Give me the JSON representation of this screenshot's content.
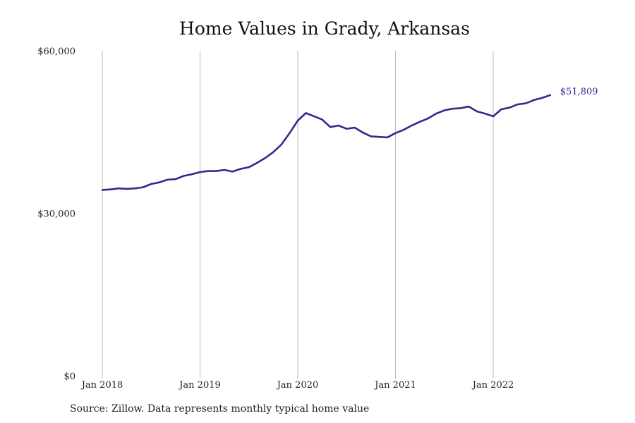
{
  "chart_data": {
    "type": "line",
    "title": "Home Values in Grady, Arkansas",
    "source": "Source: Zillow. Data represents monthly typical home value",
    "xlabel": "",
    "ylabel": "",
    "ylim": [
      0,
      60000
    ],
    "yticks": [
      {
        "value": 0,
        "label": "$0"
      },
      {
        "value": 30000,
        "label": "$30,000"
      },
      {
        "value": 60000,
        "label": "$60,000"
      }
    ],
    "xticks": [
      {
        "value": "2018-01",
        "label": "Jan 2018"
      },
      {
        "value": "2019-01",
        "label": "Jan 2019"
      },
      {
        "value": "2020-01",
        "label": "Jan 2020"
      },
      {
        "value": "2021-01",
        "label": "Jan 2021"
      },
      {
        "value": "2022-01",
        "label": "Jan 2022"
      }
    ],
    "grid": "vertical lines at year ticks",
    "line_color": "#2e2b8f",
    "grid_color": "#bbbbbb",
    "end_label": "$51,809",
    "series": [
      {
        "x": [
          "2018-01",
          "2018-02",
          "2018-03",
          "2018-04",
          "2018-05",
          "2018-06",
          "2018-07",
          "2018-08",
          "2018-09",
          "2018-10",
          "2018-11",
          "2018-12",
          "2019-01",
          "2019-02",
          "2019-03",
          "2019-04",
          "2019-05",
          "2019-06",
          "2019-07",
          "2019-08",
          "2019-09",
          "2019-10",
          "2019-11",
          "2019-12",
          "2020-01",
          "2020-02",
          "2020-03",
          "2020-04",
          "2020-05",
          "2020-06",
          "2020-07",
          "2020-08",
          "2020-09",
          "2020-10",
          "2020-11",
          "2020-12",
          "2021-01",
          "2021-02",
          "2021-03",
          "2021-04",
          "2021-05",
          "2021-06",
          "2021-07",
          "2021-08",
          "2021-09",
          "2021-10",
          "2021-11",
          "2021-12",
          "2022-01",
          "2022-02",
          "2022-03",
          "2022-04",
          "2022-05",
          "2022-06",
          "2022-07",
          "2022-08"
        ],
        "values": [
          34300,
          34400,
          34600,
          34500,
          34600,
          34800,
          35400,
          35700,
          36200,
          36300,
          36900,
          37200,
          37600,
          37800,
          37800,
          38000,
          37700,
          38200,
          38500,
          39300,
          40200,
          41300,
          42700,
          44800,
          47100,
          48500,
          47900,
          47300,
          45900,
          46200,
          45600,
          45800,
          44900,
          44200,
          44100,
          44000,
          44800,
          45400,
          46200,
          46900,
          47500,
          48400,
          49000,
          49300,
          49400,
          49700,
          48800,
          48400,
          47900,
          49200,
          49500,
          50100,
          50300,
          50900,
          51300,
          51809
        ]
      }
    ]
  }
}
